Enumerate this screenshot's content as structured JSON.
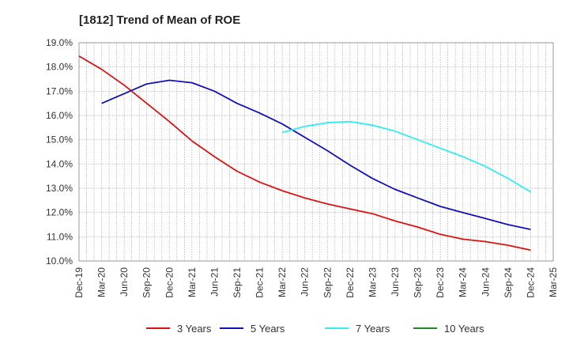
{
  "chart_data": {
    "type": "line",
    "title": "[1812]  Trend of Mean of ROE",
    "xlabel": "",
    "ylabel": "",
    "ylim": [
      10.0,
      19.0
    ],
    "y_ticks": [
      10.0,
      11.0,
      12.0,
      13.0,
      14.0,
      15.0,
      16.0,
      17.0,
      18.0,
      19.0
    ],
    "y_tick_labels": [
      "10.0%",
      "11.0%",
      "12.0%",
      "13.0%",
      "14.0%",
      "15.0%",
      "16.0%",
      "17.0%",
      "18.0%",
      "19.0%"
    ],
    "x_tick_labels": [
      "Dec-19",
      "Mar-20",
      "Jun-20",
      "Sep-20",
      "Dec-20",
      "Mar-21",
      "Jun-21",
      "Sep-21",
      "Dec-21",
      "Mar-22",
      "Jun-22",
      "Sep-22",
      "Dec-22",
      "Mar-23",
      "Jun-23",
      "Sep-23",
      "Dec-23",
      "Mar-24",
      "Jun-24",
      "Sep-24",
      "Dec-24",
      "Mar-25"
    ],
    "grid": true,
    "legend_position": "bottom",
    "series": [
      {
        "name": "3 Years",
        "color": "#dd1111",
        "start_index": 0,
        "values": [
          18.45,
          17.9,
          17.25,
          16.5,
          15.75,
          14.95,
          14.3,
          13.7,
          13.25,
          12.9,
          12.6,
          12.35,
          12.15,
          11.95,
          11.65,
          11.4,
          11.1,
          10.9,
          10.8,
          10.65,
          10.45
        ]
      },
      {
        "name": "5 Years",
        "color": "#1111bb",
        "start_index": 1,
        "values": [
          16.5,
          16.9,
          17.3,
          17.45,
          17.35,
          17.0,
          16.5,
          16.1,
          15.65,
          15.1,
          14.55,
          13.95,
          13.4,
          12.95,
          12.6,
          12.25,
          12.0,
          11.75,
          11.5,
          11.3
        ]
      },
      {
        "name": "7 Years",
        "color": "#33eeee",
        "start_index": 9,
        "values": [
          15.3,
          15.55,
          15.7,
          15.75,
          15.6,
          15.35,
          15.0,
          14.65,
          14.3,
          13.9,
          13.4,
          12.85
        ]
      },
      {
        "name": "10 Years",
        "color": "#228822",
        "start_index": 0,
        "values": []
      }
    ]
  }
}
